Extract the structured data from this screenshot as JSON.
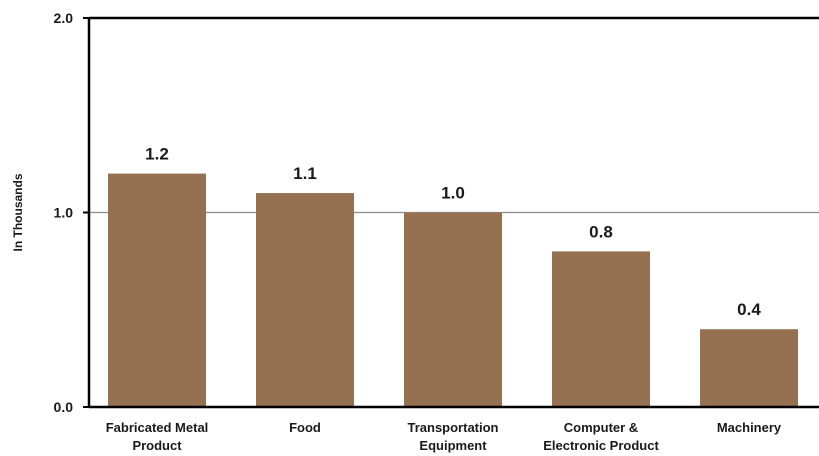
{
  "chart_data": {
    "type": "bar",
    "categories": [
      [
        "Fabricated Metal",
        "Product"
      ],
      [
        "Food"
      ],
      [
        "Transportation",
        "Equipment"
      ],
      [
        "Computer &",
        "Electronic Product"
      ],
      [
        "Machinery"
      ]
    ],
    "values": [
      1.2,
      1.1,
      1.0,
      0.8,
      0.4
    ],
    "value_labels": [
      "1.2",
      "1.1",
      "1.0",
      "0.8",
      "0.4"
    ],
    "ylabel": "In Thousands",
    "ylim": [
      0,
      2.0
    ],
    "yticks": [
      {
        "value": 0,
        "label": "0.0"
      },
      {
        "value": 1.0,
        "label": "1.0"
      },
      {
        "value": 2.0,
        "label": "2.0"
      }
    ],
    "gridlines": [
      1.0
    ],
    "bar_color": "#957152",
    "axis_color": "#000000",
    "grid_color": "#8c8c8c"
  }
}
